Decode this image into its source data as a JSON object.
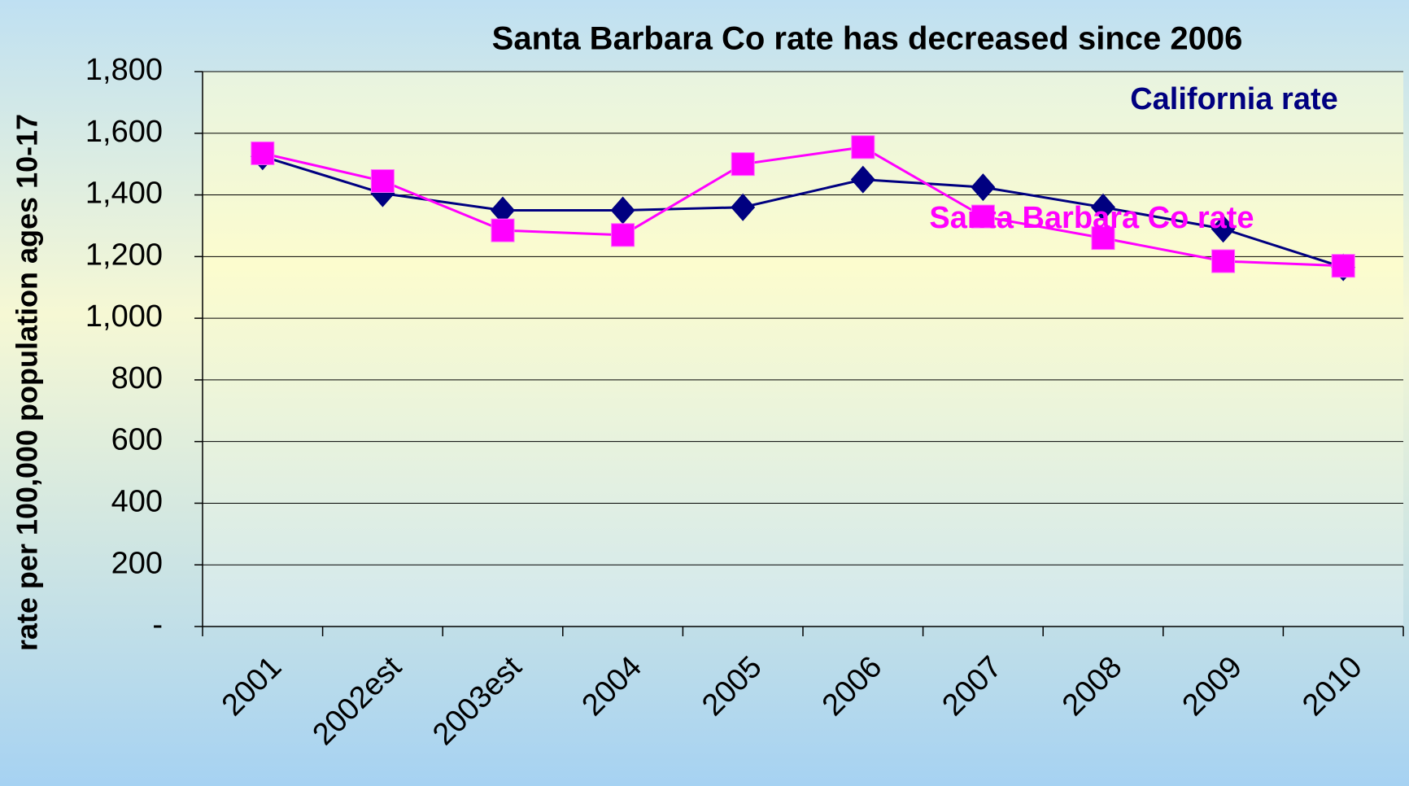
{
  "chart_data": {
    "type": "line",
    "title": "Santa Barbara Co rate has  decreased since 2006",
    "y_label": "rate per 100,000 population ages 10-17",
    "categories": [
      "2001",
      "2002est",
      "2003est",
      "2004",
      "2005",
      "2006",
      "2007",
      "2008",
      "2009",
      "2010"
    ],
    "series": [
      {
        "name": "California rate",
        "color": "#000080",
        "marker": "diamond",
        "values": [
          1525,
          1405,
          1350,
          1350,
          1360,
          1450,
          1425,
          1360,
          1290,
          1165
        ]
      },
      {
        "name": "Santa Barbara Co rate",
        "color": "#ff00ff",
        "marker": "square",
        "values": [
          1535,
          1445,
          1285,
          1270,
          1500,
          1555,
          1330,
          1260,
          1185,
          1170
        ]
      }
    ],
    "ylim": [
      0,
      1800
    ],
    "yticks": [
      {
        "value": 0,
        "label": "-"
      },
      200,
      400,
      600,
      800,
      {
        "value": 1000,
        "label": "1,000"
      },
      {
        "value": 1200,
        "label": "1,200"
      },
      {
        "value": 1400,
        "label": "1,400"
      },
      {
        "value": 1600,
        "label": "1,600"
      },
      {
        "value": 1800,
        "label": "1,800"
      }
    ],
    "grid": true
  }
}
